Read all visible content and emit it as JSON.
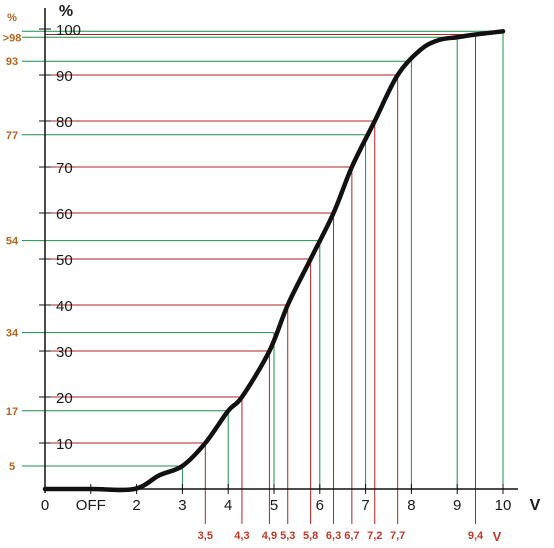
{
  "chart_data": {
    "type": "line",
    "y_unit": "%",
    "x_unit": "V",
    "secondary_x_unit": "V",
    "y_ticks": [
      "10",
      "20",
      "30",
      "40",
      "50",
      "60",
      "70",
      "80",
      "90",
      "100"
    ],
    "x_ticks": [
      {
        "v": 0,
        "label": "0"
      },
      {
        "v": 1,
        "label": "OFF"
      },
      {
        "v": 2,
        "label": "2"
      },
      {
        "v": 3,
        "label": "3"
      },
      {
        "v": 4,
        "label": "4"
      },
      {
        "v": 5,
        "label": "5"
      },
      {
        "v": 6,
        "label": "6"
      },
      {
        "v": 7,
        "label": "7"
      },
      {
        "v": 8,
        "label": "8"
      },
      {
        "v": 9,
        "label": "9"
      },
      {
        "v": 10,
        "label": "10"
      }
    ],
    "xlim": [
      0,
      10
    ],
    "ylim": [
      0,
      100
    ],
    "curve": {
      "x": [
        0,
        1,
        1.95,
        2.5,
        3,
        3.5,
        4,
        4.3,
        4.9,
        5.3,
        5.8,
        6.3,
        6.7,
        7.2,
        7.7,
        8.2,
        8.6,
        9,
        9.4,
        10
      ],
      "y": [
        0,
        0,
        0,
        3,
        5,
        10,
        17,
        20,
        30,
        40,
        50,
        60,
        70,
        80,
        90,
        95.5,
        97.6,
        98.2,
        98.8,
        99.5
      ]
    },
    "red_markers": [
      {
        "x": 3.5,
        "y": 10,
        "label": "3,5"
      },
      {
        "x": 4.3,
        "y": 20,
        "label": "4,3"
      },
      {
        "x": 4.9,
        "y": 30,
        "label": "4,9"
      },
      {
        "x": 5.3,
        "y": 40,
        "label": "5,3"
      },
      {
        "x": 5.8,
        "y": 50,
        "label": "5,8"
      },
      {
        "x": 6.3,
        "y": 60,
        "label": "6,3"
      },
      {
        "x": 6.7,
        "y": 70,
        "label": "6,7"
      },
      {
        "x": 7.2,
        "y": 80,
        "label": "7,2"
      },
      {
        "x": 7.7,
        "y": 90,
        "label": "7,7"
      },
      {
        "x": 9.4,
        "y": 98.8,
        "label": "9,4"
      }
    ],
    "green_markers": [
      {
        "x": 3,
        "y": 5,
        "label": "5"
      },
      {
        "x": 4,
        "y": 17,
        "label": "17"
      },
      {
        "x": 5,
        "y": 34,
        "label": "34"
      },
      {
        "x": 6,
        "y": 54,
        "label": "54"
      },
      {
        "x": 7,
        "y": 77,
        "label": "77"
      },
      {
        "x": 8,
        "y": 93,
        "label": "93"
      },
      {
        "x": 9,
        "y": 98.2,
        "label": ">98"
      },
      {
        "x": 10,
        "y": 99.5,
        "label": ""
      }
    ],
    "colors": {
      "curve": "#111111",
      "red": "#b22222",
      "green": "#1e8c4e",
      "axis": "#111111",
      "left_label": "#b5651d"
    }
  }
}
